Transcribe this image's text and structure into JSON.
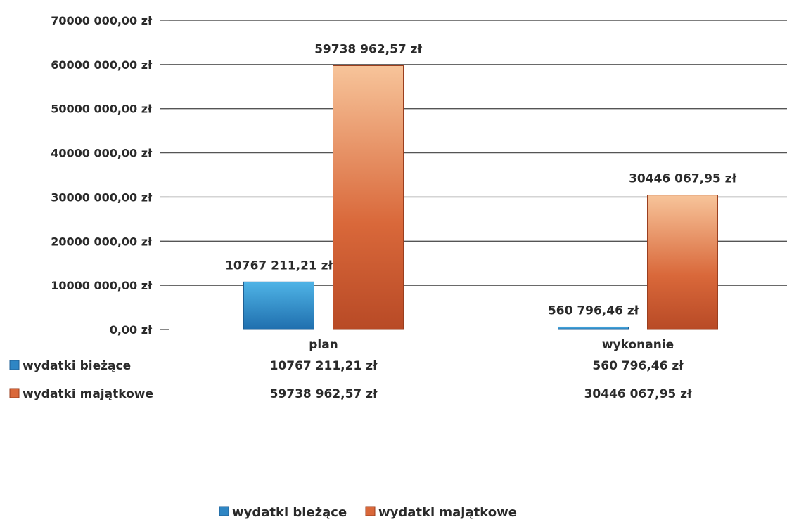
{
  "chart_data": {
    "type": "bar",
    "categories": [
      "plan",
      "wykonanie"
    ],
    "series": [
      {
        "name": "wydatki bieżące",
        "values": [
          10767211.21,
          560796.46
        ],
        "labels": [
          "10767 211,21 zł",
          "560 796,46 zł"
        ],
        "color": "#2f86c4"
      },
      {
        "name": "wydatki majątkowe",
        "values": [
          59738962.57,
          30446067.95
        ],
        "labels": [
          "59738 962,57 zł",
          "30446 067,95 zł"
        ],
        "color": "#d9683a"
      }
    ],
    "ylim": [
      0,
      70000000
    ],
    "yticks": [
      0,
      10000000,
      20000000,
      30000000,
      40000000,
      50000000,
      60000000,
      70000000
    ],
    "ytick_labels": [
      "0,00 zł",
      "10000 000,00 zł",
      "20000 000,00 zł",
      "30000 000,00 zł",
      "40000 000,00 zł",
      "50000 000,00 zł",
      "60000 000,00 zł",
      "70000 000,00 zł"
    ],
    "grid": true,
    "data_table": true,
    "legend": "bottom"
  }
}
